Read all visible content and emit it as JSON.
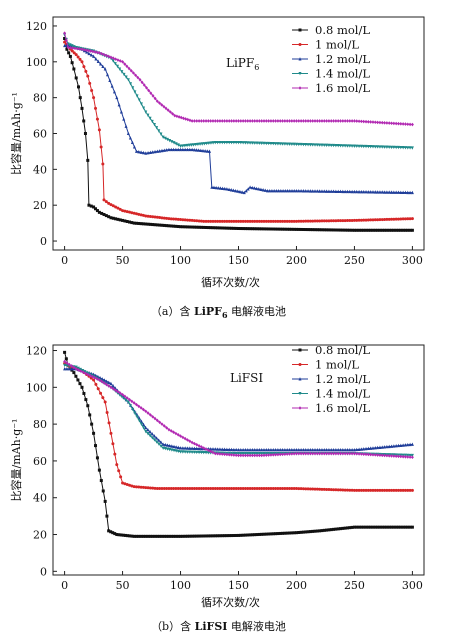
{
  "chart_data": [
    {
      "type": "line",
      "title": "",
      "annotation": "LiPF6",
      "caption_prefix": "（a）含",
      "caption_chem": "LiPF",
      "caption_sub": "6",
      "caption_suffix": "电解液电池",
      "xlabel": "循环次数/次",
      "ylabel": "比容量/mAh·g⁻¹",
      "xlim": [
        -10,
        310
      ],
      "ylim": [
        -5,
        125
      ],
      "xticks": [
        0,
        50,
        100,
        150,
        200,
        250,
        300
      ],
      "yticks": [
        0,
        20,
        40,
        60,
        80,
        100,
        120
      ],
      "legend_position": "top-right",
      "series": [
        {
          "name": "0.8 mol/L",
          "color": "#111111",
          "marker": "square",
          "points": [
            [
              0,
              113
            ],
            [
              2,
              107
            ],
            [
              5,
              103
            ],
            [
              8,
              96
            ],
            [
              12,
              86
            ],
            [
              15,
              74
            ],
            [
              18,
              60
            ],
            [
              20,
              45
            ],
            [
              21,
              20
            ],
            [
              25,
              19
            ],
            [
              30,
              16
            ],
            [
              40,
              13
            ],
            [
              60,
              10
            ],
            [
              80,
              9
            ],
            [
              100,
              8
            ],
            [
              150,
              7
            ],
            [
              200,
              6.5
            ],
            [
              250,
              6
            ],
            [
              300,
              6
            ]
          ]
        },
        {
          "name": "1 mol/L",
          "color": "#d62728",
          "marker": "circle",
          "points": [
            [
              0,
              111
            ],
            [
              5,
              107
            ],
            [
              10,
              104
            ],
            [
              15,
              100
            ],
            [
              20,
              92
            ],
            [
              25,
              80
            ],
            [
              30,
              62
            ],
            [
              33,
              43
            ],
            [
              34,
              23
            ],
            [
              38,
              21
            ],
            [
              50,
              17
            ],
            [
              70,
              14
            ],
            [
              90,
              12.5
            ],
            [
              120,
              11
            ],
            [
              150,
              11
            ],
            [
              200,
              11
            ],
            [
              250,
              11.5
            ],
            [
              300,
              12.5
            ]
          ]
        },
        {
          "name": "1.2 mol/L",
          "color": "#1f3d99",
          "marker": "triangle",
          "points": [
            [
              0,
              109
            ],
            [
              5,
              109
            ],
            [
              15,
              107
            ],
            [
              25,
              103
            ],
            [
              35,
              96
            ],
            [
              45,
              80
            ],
            [
              55,
              60
            ],
            [
              62,
              50
            ],
            [
              70,
              49
            ],
            [
              90,
              51
            ],
            [
              110,
              51
            ],
            [
              125,
              50
            ],
            [
              127,
              30
            ],
            [
              140,
              29
            ],
            [
              155,
              27
            ],
            [
              160,
              30
            ],
            [
              175,
              28
            ],
            [
              200,
              28
            ],
            [
              250,
              27.5
            ],
            [
              300,
              27
            ]
          ]
        },
        {
          "name": "1.4 mol/L",
          "color": "#1f8a8a",
          "marker": "triangle-down",
          "points": [
            [
              0,
              115
            ],
            [
              3,
              110
            ],
            [
              10,
              108
            ],
            [
              25,
              106
            ],
            [
              40,
              102
            ],
            [
              55,
              90
            ],
            [
              70,
              72
            ],
            [
              85,
              58
            ],
            [
              100,
              53
            ],
            [
              115,
              54
            ],
            [
              130,
              55
            ],
            [
              150,
              55
            ],
            [
              200,
              54
            ],
            [
              250,
              53
            ],
            [
              300,
              52
            ]
          ]
        },
        {
          "name": "1.6 mol/L",
          "color": "#b22ab2",
          "marker": "diamond",
          "points": [
            [
              0,
              116
            ],
            [
              3,
              108
            ],
            [
              15,
              107
            ],
            [
              30,
              105
            ],
            [
              50,
              100
            ],
            [
              65,
              90
            ],
            [
              80,
              78
            ],
            [
              95,
              70
            ],
            [
              110,
              67
            ],
            [
              150,
              67
            ],
            [
              200,
              67
            ],
            [
              250,
              67
            ],
            [
              300,
              65
            ]
          ]
        }
      ]
    },
    {
      "type": "line",
      "title": "",
      "annotation": "LiFSI",
      "caption_prefix": "（b）含",
      "caption_chem": "LiFSI",
      "caption_sub": "",
      "caption_suffix": "电解液电池",
      "xlabel": "循环次数/次",
      "ylabel": "比容量/mAh·g⁻¹",
      "xlim": [
        -10,
        310
      ],
      "ylim": [
        -2,
        123
      ],
      "xticks": [
        0,
        50,
        100,
        150,
        200,
        250,
        300
      ],
      "yticks": [
        0,
        20,
        40,
        60,
        80,
        100,
        120
      ],
      "legend_position": "top-right",
      "series": [
        {
          "name": "0.8 mol/L",
          "color": "#111111",
          "marker": "square",
          "points": [
            [
              0,
              119
            ],
            [
              3,
              112
            ],
            [
              8,
              108
            ],
            [
              15,
              100
            ],
            [
              20,
              90
            ],
            [
              25,
              75
            ],
            [
              30,
              55
            ],
            [
              35,
              38
            ],
            [
              38,
              22
            ],
            [
              45,
              20
            ],
            [
              60,
              19
            ],
            [
              100,
              19
            ],
            [
              150,
              19.5
            ],
            [
              200,
              21
            ],
            [
              220,
              22
            ],
            [
              250,
              24
            ],
            [
              280,
              24
            ],
            [
              300,
              24
            ]
          ]
        },
        {
          "name": "1 mol/L",
          "color": "#d62728",
          "marker": "circle",
          "points": [
            [
              0,
              113
            ],
            [
              5,
              111
            ],
            [
              15,
              109
            ],
            [
              25,
              104
            ],
            [
              35,
              92
            ],
            [
              40,
              75
            ],
            [
              45,
              58
            ],
            [
              50,
              48
            ],
            [
              60,
              46
            ],
            [
              80,
              45
            ],
            [
              100,
              45
            ],
            [
              150,
              45
            ],
            [
              200,
              45
            ],
            [
              250,
              44
            ],
            [
              300,
              44
            ]
          ]
        },
        {
          "name": "1.2 mol/L",
          "color": "#1f3d99",
          "marker": "triangle",
          "points": [
            [
              0,
              110
            ],
            [
              10,
              110
            ],
            [
              25,
              107
            ],
            [
              40,
              102
            ],
            [
              55,
              92
            ],
            [
              70,
              78
            ],
            [
              85,
              69
            ],
            [
              100,
              67
            ],
            [
              150,
              66
            ],
            [
              200,
              66
            ],
            [
              250,
              66
            ],
            [
              300,
              69
            ]
          ]
        },
        {
          "name": "1.4 mol/L",
          "color": "#1f8a8a",
          "marker": "triangle-down",
          "points": [
            [
              0,
              112
            ],
            [
              10,
              111
            ],
            [
              25,
              106
            ],
            [
              40,
              100
            ],
            [
              55,
              92
            ],
            [
              70,
              76
            ],
            [
              85,
              67
            ],
            [
              100,
              65
            ],
            [
              150,
              64
            ],
            [
              200,
              64
            ],
            [
              250,
              64
            ],
            [
              300,
              63
            ]
          ]
        },
        {
          "name": "1.6 mol/L",
          "color": "#b22ab2",
          "marker": "diamond",
          "points": [
            [
              0,
              114
            ],
            [
              10,
              110
            ],
            [
              30,
              104
            ],
            [
              50,
              96
            ],
            [
              70,
              87
            ],
            [
              90,
              77
            ],
            [
              110,
              70
            ],
            [
              130,
              64
            ],
            [
              150,
              63
            ],
            [
              170,
              63
            ],
            [
              200,
              64
            ],
            [
              250,
              64
            ],
            [
              300,
              62
            ]
          ]
        }
      ]
    }
  ]
}
